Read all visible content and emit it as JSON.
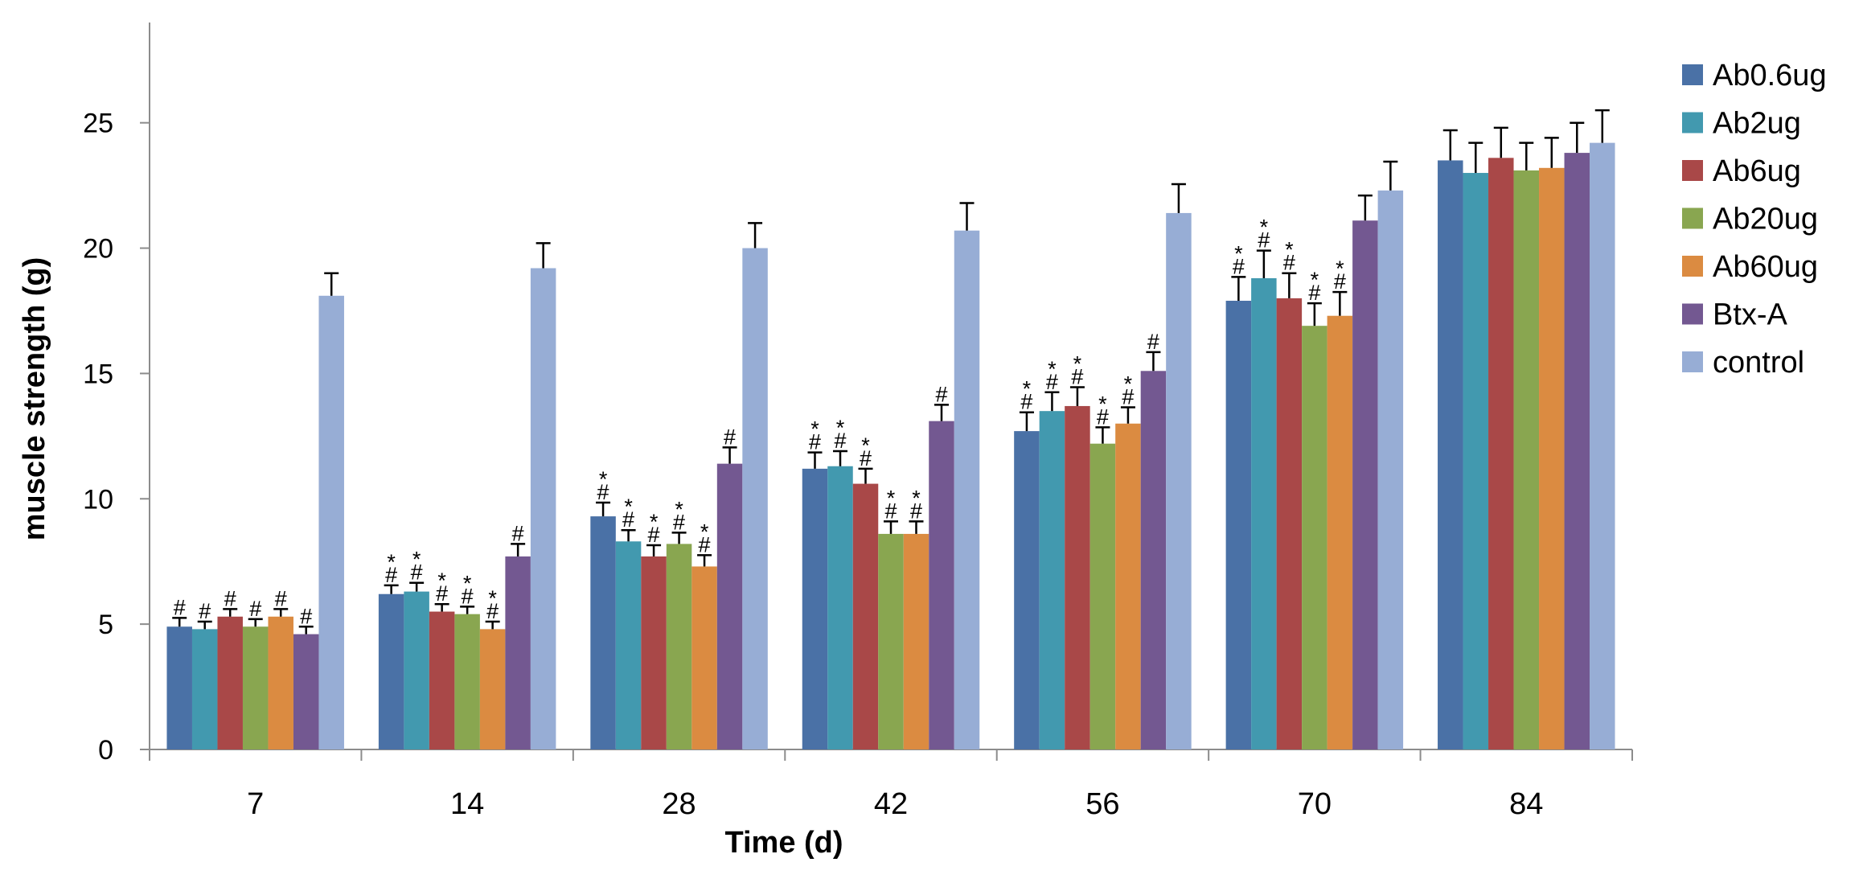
{
  "chart_data": {
    "type": "bar",
    "title": "",
    "xlabel": "Time (d)",
    "ylabel": "muscle  strength (g)",
    "categories": [
      "7",
      "14",
      "28",
      "42",
      "56",
      "70",
      "84"
    ],
    "ylim": [
      0,
      29
    ],
    "yticks": [
      0,
      5,
      10,
      15,
      20,
      25
    ],
    "grid": false,
    "legend_position": "right",
    "series": [
      {
        "name": "Ab0.6ug",
        "color": "#4A71A6",
        "values": [
          4.9,
          6.2,
          9.3,
          11.2,
          12.7,
          17.9,
          23.5
        ],
        "errors": [
          0.35,
          0.35,
          0.55,
          0.65,
          0.75,
          0.95,
          1.2
        ],
        "marks": [
          [
            "#"
          ],
          [
            "#",
            "*"
          ],
          [
            "#",
            "*"
          ],
          [
            "#",
            "*"
          ],
          [
            "#",
            "*"
          ],
          [
            "#",
            "*"
          ],
          []
        ]
      },
      {
        "name": "Ab2ug",
        "color": "#4299AF",
        "values": [
          4.8,
          6.3,
          8.3,
          11.3,
          13.5,
          18.8,
          23.0
        ],
        "errors": [
          0.3,
          0.35,
          0.45,
          0.6,
          0.75,
          1.1,
          1.2
        ],
        "marks": [
          [
            "#"
          ],
          [
            "#",
            "*"
          ],
          [
            "#",
            "*"
          ],
          [
            "#",
            "*"
          ],
          [
            "#",
            "*"
          ],
          [
            "#",
            "*"
          ],
          []
        ]
      },
      {
        "name": "Ab6ug",
        "color": "#A94848",
        "values": [
          5.3,
          5.5,
          7.7,
          10.6,
          13.7,
          18.0,
          23.6
        ],
        "errors": [
          0.3,
          0.3,
          0.45,
          0.6,
          0.75,
          1.0,
          1.2
        ],
        "marks": [
          [
            "#"
          ],
          [
            "#",
            "*"
          ],
          [
            "#",
            "*"
          ],
          [
            "#",
            "*"
          ],
          [
            "#",
            "*"
          ],
          [
            "#",
            "*"
          ],
          []
        ]
      },
      {
        "name": "Ab20ug",
        "color": "#89A650",
        "values": [
          4.9,
          5.4,
          8.2,
          8.6,
          12.2,
          16.9,
          23.1
        ],
        "errors": [
          0.3,
          0.3,
          0.45,
          0.5,
          0.65,
          0.9,
          1.1
        ],
        "marks": [
          [
            "#"
          ],
          [
            "#",
            "*"
          ],
          [
            "#",
            "*"
          ],
          [
            "#",
            "*"
          ],
          [
            "#",
            "*"
          ],
          [
            "#",
            "*"
          ],
          []
        ]
      },
      {
        "name": "Ab60ug",
        "color": "#DB8B41",
        "values": [
          5.3,
          4.8,
          7.3,
          8.6,
          13.0,
          17.3,
          23.2
        ],
        "errors": [
          0.3,
          0.3,
          0.45,
          0.5,
          0.65,
          0.95,
          1.2
        ],
        "marks": [
          [
            "#"
          ],
          [
            "#",
            "*"
          ],
          [
            "#",
            "*"
          ],
          [
            "#",
            "*"
          ],
          [
            "#",
            "*"
          ],
          [
            "#",
            "*"
          ],
          []
        ]
      },
      {
        "name": "Btx-A",
        "color": "#735891",
        "values": [
          4.6,
          7.7,
          11.4,
          13.1,
          15.1,
          21.1,
          23.8
        ],
        "errors": [
          0.3,
          0.5,
          0.65,
          0.65,
          0.75,
          1.0,
          1.2
        ],
        "marks": [
          [
            "#"
          ],
          [
            "#"
          ],
          [
            "#"
          ],
          [
            "#"
          ],
          [
            "#"
          ],
          [],
          []
        ]
      },
      {
        "name": "control",
        "color": "#97ADD5",
        "values": [
          18.1,
          19.2,
          20.0,
          20.7,
          21.4,
          22.3,
          24.2
        ],
        "errors": [
          0.9,
          1.0,
          1.0,
          1.1,
          1.15,
          1.15,
          1.3
        ],
        "marks": [
          [],
          [],
          [],
          [],
          [],
          [],
          []
        ]
      }
    ]
  }
}
